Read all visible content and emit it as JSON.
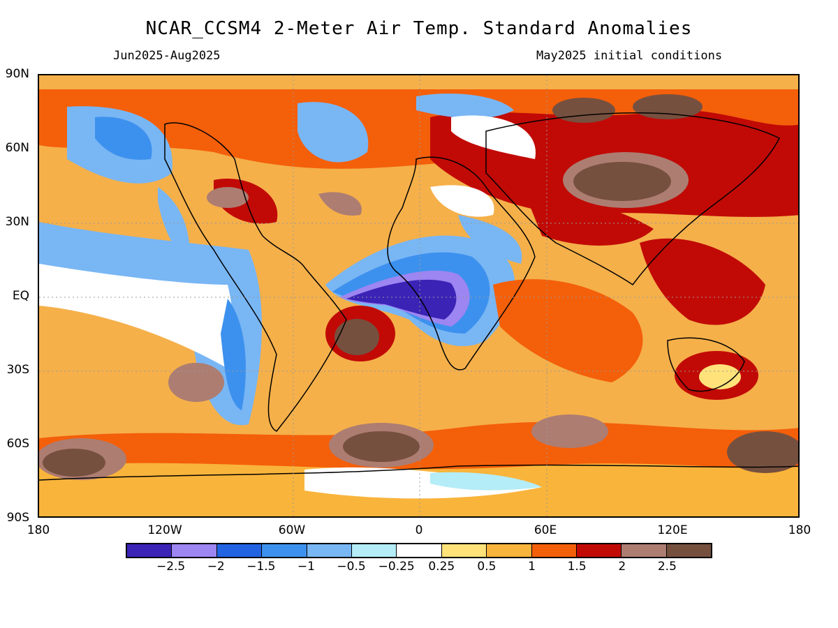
{
  "header": {
    "title": "NCAR_CCSM4 2-Meter Air Temp. Standard Anomalies",
    "period": "Jun2025-Aug2025",
    "init": "May2025 initial conditions"
  },
  "axes": {
    "y_labels": [
      "90N",
      "60N",
      "30N",
      "EQ",
      "30S",
      "60S",
      "90S"
    ],
    "x_labels": [
      "180",
      "120W",
      "60W",
      "0",
      "60E",
      "120E",
      "180"
    ]
  },
  "colorbar": {
    "colors": [
      "#3b23b6",
      "#9d85f2",
      "#2163e3",
      "#3d91ee",
      "#79b6f4",
      "#b4ecf7",
      "#ffffff",
      "#ffe27a",
      "#f9b43b",
      "#f45f0a",
      "#c10a06",
      "#ad7d72",
      "#76503f"
    ],
    "labels": [
      "-2.5",
      "-2",
      "-1.5",
      "-1",
      "-0.5",
      "-0.25",
      "0.25",
      "0.5",
      "1",
      "1.5",
      "2",
      "2.5"
    ]
  },
  "map": {
    "background_color": "#f5b04a",
    "anomaly_regions": [
      {
        "name": "tropical-atlantic-cold",
        "color": "#3b23b6"
      },
      {
        "name": "eastern-pacific-cool",
        "color": "#79b6f4"
      },
      {
        "name": "north-pacific-warm",
        "color": "#c10a06"
      },
      {
        "name": "siberia-warm",
        "color": "#76503f"
      },
      {
        "name": "southern-ocean-warm",
        "color": "#76503f"
      }
    ]
  }
}
